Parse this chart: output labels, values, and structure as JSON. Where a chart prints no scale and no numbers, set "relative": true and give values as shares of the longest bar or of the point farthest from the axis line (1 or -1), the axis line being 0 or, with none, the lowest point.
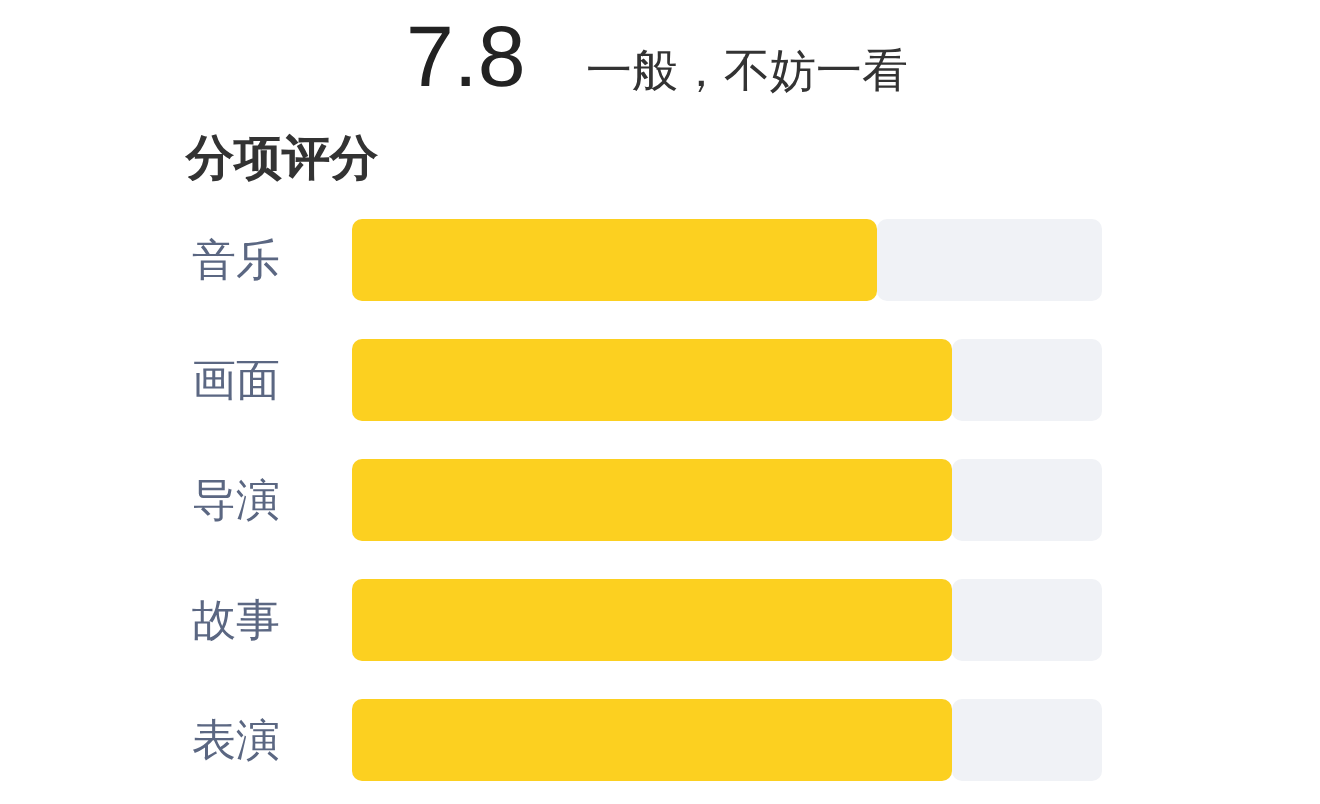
{
  "chart_data": {
    "type": "bar",
    "orientation": "horizontal",
    "stacked": true,
    "relative": true,
    "title": "分项评分",
    "annotations": [
      "7.8",
      "一般，不妨一看"
    ],
    "categories": [
      "音乐",
      "画面",
      "导演",
      "故事",
      "表演"
    ],
    "series": [
      {
        "color": "#fcd020",
        "values": [
          0.7,
          0.8,
          0.8,
          0.8,
          0.8
        ]
      },
      {
        "color": "#f0f2f6",
        "values": [
          0.3,
          0.2,
          0.2,
          0.2,
          0.2
        ]
      }
    ]
  }
}
